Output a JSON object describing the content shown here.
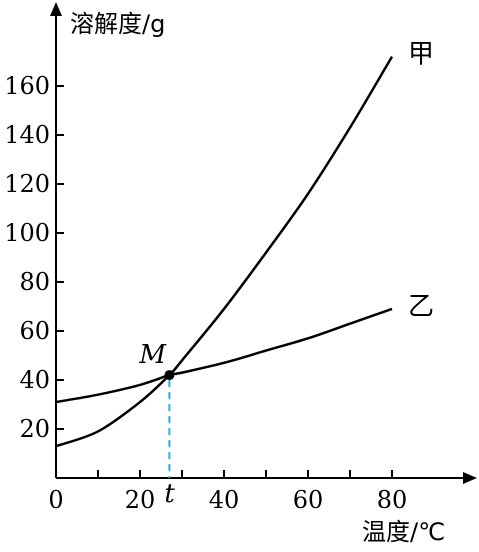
{
  "chart_data": {
    "type": "line",
    "ylabel": "溶解度/g",
    "xlabel": "温度/℃",
    "x_ticks": [
      0,
      20,
      40,
      60,
      80
    ],
    "y_ticks": [
      20,
      40,
      60,
      80,
      100,
      120,
      140,
      160
    ],
    "xlim": [
      0,
      95
    ],
    "ylim": [
      0,
      180
    ],
    "grid": false,
    "series": [
      {
        "name": "甲",
        "x": [
          0,
          10,
          20,
          27,
          30,
          40,
          50,
          60,
          70,
          80
        ],
        "y": [
          13,
          19,
          31,
          42,
          48,
          69,
          92,
          116,
          143,
          172
        ]
      },
      {
        "name": "乙",
        "x": [
          0,
          10,
          20,
          27,
          30,
          40,
          50,
          60,
          70,
          80
        ],
        "y": [
          31,
          34,
          38,
          42,
          43,
          47,
          52,
          57,
          63,
          69
        ]
      }
    ],
    "annotations": [
      {
        "label": "M",
        "x": 27,
        "y": 42
      },
      {
        "label": "t",
        "x": 27
      }
    ],
    "colors": {
      "axis": "#000000",
      "curve": "#000000",
      "guide": "#29abe2"
    }
  }
}
